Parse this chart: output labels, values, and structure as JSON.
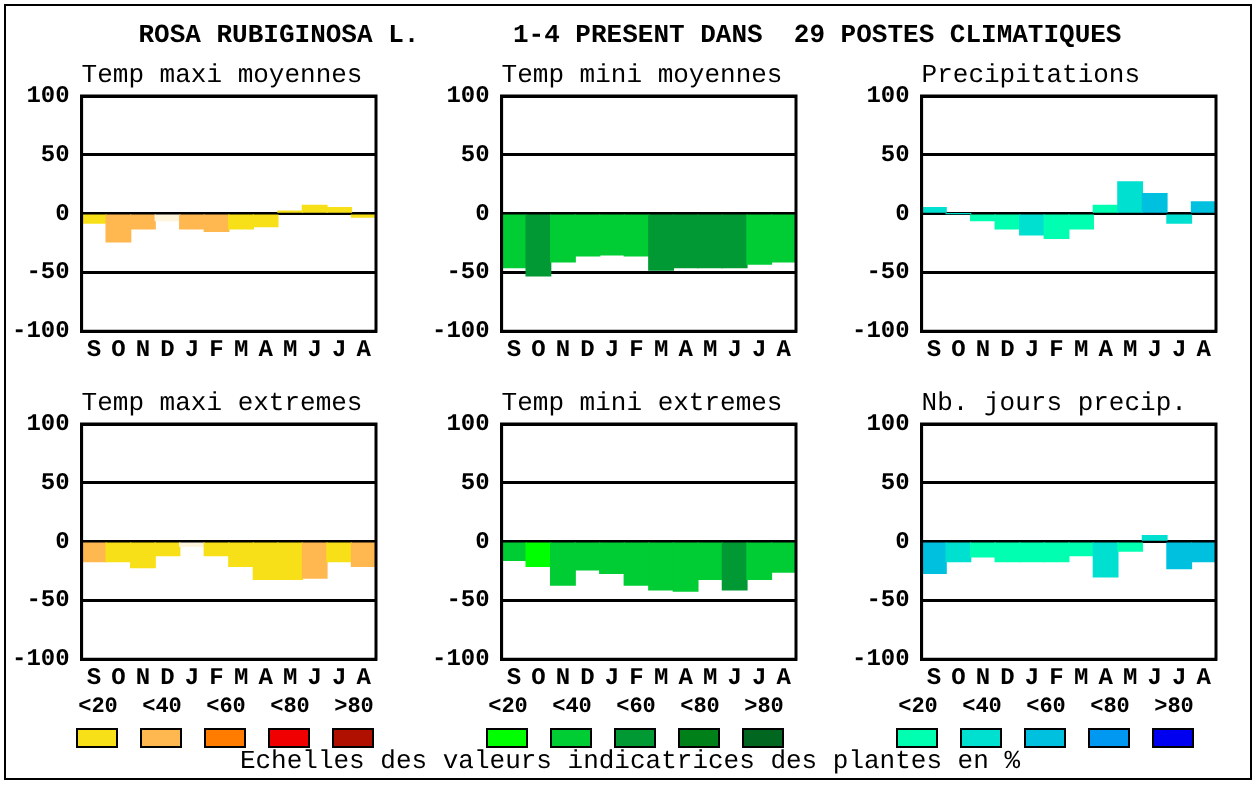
{
  "chart_data": [
    {
      "type": "bar",
      "title": "Temp maxi moyennes",
      "categories": [
        "S",
        "O",
        "N",
        "D",
        "J",
        "F",
        "M",
        "A",
        "M",
        "J",
        "J",
        "A"
      ],
      "values": [
        -8,
        -24,
        -13,
        -6,
        -13,
        -15,
        -13,
        -11,
        2,
        7,
        5,
        -3
      ],
      "colors": [
        "#f8e018",
        "#ffb850",
        "#ffb850",
        "#fff4dc",
        "#ffb850",
        "#ffb850",
        "#f8e018",
        "#f8e018",
        "#f8e018",
        "#f8e018",
        "#f8e018",
        "#f8e018"
      ],
      "ylim": [
        -100,
        100
      ],
      "yticks": [
        -100,
        -50,
        0,
        50,
        100
      ],
      "grid": "y"
    },
    {
      "type": "bar",
      "title": "Temp mini moyennes",
      "categories": [
        "S",
        "O",
        "N",
        "D",
        "J",
        "F",
        "M",
        "A",
        "M",
        "J",
        "J",
        "A"
      ],
      "values": [
        -46,
        -53,
        -41,
        -36,
        -35,
        -36,
        -48,
        -46,
        -46,
        -46,
        -43,
        -41
      ],
      "colors": [
        "#00cc33",
        "#009933",
        "#00cc33",
        "#00cc33",
        "#00cc33",
        "#00cc33",
        "#009933",
        "#009933",
        "#009933",
        "#009933",
        "#00cc33",
        "#00cc33"
      ],
      "ylim": [
        -100,
        100
      ],
      "yticks": [
        -100,
        -50,
        0,
        50,
        100
      ],
      "grid": "y"
    },
    {
      "type": "bar",
      "title": "Precipitations",
      "categories": [
        "S",
        "O",
        "N",
        "D",
        "J",
        "F",
        "M",
        "A",
        "M",
        "J",
        "J",
        "A"
      ],
      "values": [
        5,
        0,
        -6,
        -13,
        -18,
        -21,
        -13,
        7,
        27,
        17,
        -8,
        10
      ],
      "colors": [
        "#00e0d0",
        "#00e0d0",
        "#00ffb0",
        "#00ffb0",
        "#00e0d0",
        "#00ffb0",
        "#00ffb0",
        "#00ffb0",
        "#00e0d0",
        "#00c0e0",
        "#00e0d0",
        "#00c0e0"
      ],
      "ylim": [
        -100,
        100
      ],
      "yticks": [
        -100,
        -50,
        0,
        50,
        100
      ],
      "grid": "y"
    },
    {
      "type": "bar",
      "title": "Temp maxi extremes",
      "categories": [
        "S",
        "O",
        "N",
        "D",
        "J",
        "F",
        "M",
        "A",
        "M",
        "J",
        "J",
        "A"
      ],
      "values": [
        -17,
        -17,
        -22,
        -12,
        -4,
        -12,
        -21,
        -32,
        -32,
        -31,
        -17,
        -21
      ],
      "colors": [
        "#ffb850",
        "#f8e018",
        "#f8e018",
        "#f8e018",
        "#fff4dc",
        "#f8e018",
        "#f8e018",
        "#f8e018",
        "#f8e018",
        "#ffb850",
        "#f8e018",
        "#ffb850"
      ],
      "ylim": [
        -100,
        100
      ],
      "yticks": [
        -100,
        -50,
        0,
        50,
        100
      ],
      "grid": "y"
    },
    {
      "type": "bar",
      "title": "Temp mini extremes",
      "categories": [
        "S",
        "O",
        "N",
        "D",
        "J",
        "F",
        "M",
        "A",
        "M",
        "J",
        "J",
        "A"
      ],
      "values": [
        -16,
        -21,
        -37,
        -24,
        -27,
        -37,
        -41,
        -42,
        -32,
        -41,
        -32,
        -26
      ],
      "colors": [
        "#00cc33",
        "#00ff00",
        "#00cc33",
        "#00cc33",
        "#00cc33",
        "#00cc33",
        "#00cc33",
        "#00cc33",
        "#00cc33",
        "#009933",
        "#00cc33",
        "#00cc33"
      ],
      "ylim": [
        -100,
        100
      ],
      "yticks": [
        -100,
        -50,
        0,
        50,
        100
      ],
      "grid": "y"
    },
    {
      "type": "bar",
      "title": "Nb. jours precip.",
      "categories": [
        "S",
        "O",
        "N",
        "D",
        "J",
        "F",
        "M",
        "A",
        "M",
        "J",
        "J",
        "A"
      ],
      "values": [
        -27,
        -17,
        -13,
        -17,
        -17,
        -17,
        -12,
        -30,
        -8,
        5,
        -23,
        -17
      ],
      "colors": [
        "#00c0e0",
        "#00e0d0",
        "#00ffb0",
        "#00ffb0",
        "#00ffb0",
        "#00ffb0",
        "#00ffb0",
        "#00e0d0",
        "#00ffb0",
        "#00e0d0",
        "#00c0e0",
        "#00c0e0"
      ],
      "ylim": [
        -100,
        100
      ],
      "yticks": [
        -100,
        -50,
        0,
        50,
        100
      ],
      "grid": "y"
    },
    {
      "type": "other",
      "title": "ROSA RUBIGINOSA L.      1-4 PRESENT DANS  29 POSTES CLIMATIQUES",
      "annotations": [
        "<20",
        "<40",
        "<60",
        "<80",
        ">80",
        "<20",
        "<40",
        "<60",
        "<80",
        ">80",
        "<20",
        "<40",
        "<60",
        "<80",
        ">80",
        "Echelles des valeurs indicatrices des plantes en %"
      ],
      "colors": [
        "#f8e018",
        "#ffb850",
        "#ff7c00",
        "#f00000",
        "#b01000",
        "#00ff00",
        "#00cc33",
        "#009933",
        "#008018",
        "#006620",
        "#00ffb0",
        "#00e0d0",
        "#00c0e0",
        "#0098f0",
        "#0000f0"
      ]
    }
  ]
}
